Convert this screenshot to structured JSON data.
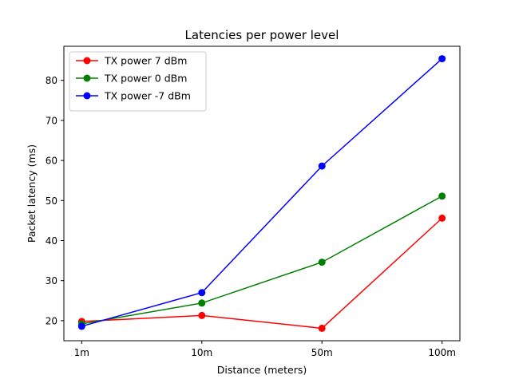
{
  "chart_data": {
    "type": "line",
    "title": "Latencies per power level",
    "xlabel": "Distance (meters)",
    "ylabel": "Packet latency (ms)",
    "categories": [
      "1m",
      "10m",
      "50m",
      "100m"
    ],
    "ylim": [
      15,
      88.5
    ],
    "yticks": [
      20,
      30,
      40,
      50,
      60,
      70,
      80
    ],
    "grid": false,
    "legend_position": "top-left",
    "series": [
      {
        "name": "TX power 7 dBm",
        "color": "#ff0000",
        "values": [
          19.8,
          21.3,
          18.1,
          45.6
        ]
      },
      {
        "name": "TX power 0 dBm",
        "color": "#008000",
        "values": [
          19.2,
          24.4,
          34.6,
          51.1
        ]
      },
      {
        "name": "TX power -7 dBm",
        "color": "#0000ff",
        "values": [
          18.6,
          27.0,
          58.6,
          85.4
        ]
      }
    ]
  }
}
